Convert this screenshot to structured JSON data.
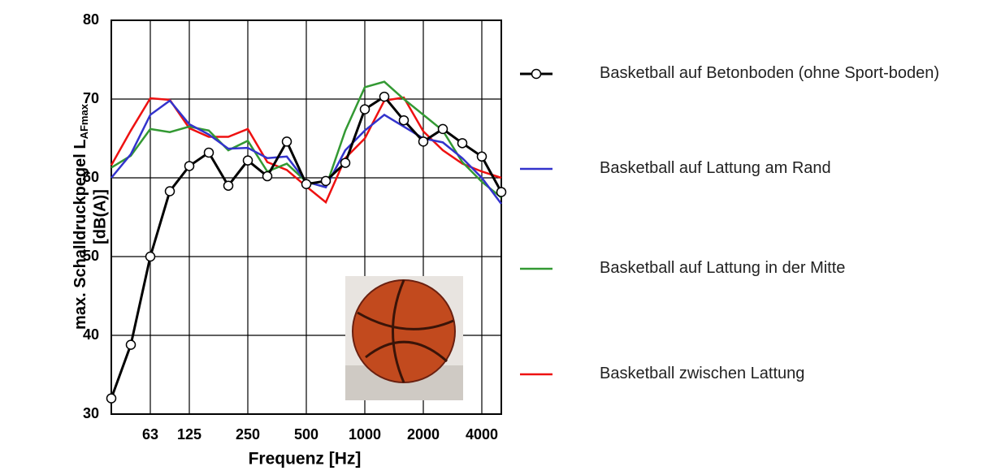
{
  "chart_data": {
    "type": "line",
    "y_label": {
      "main": "max. Schalldruckpegel L",
      "sub": "AFmax",
      "unit": "[dB(A)]"
    },
    "x_label": "Frequenz [Hz]",
    "categories": [
      null,
      null,
      "63",
      null,
      "125",
      null,
      null,
      "250",
      null,
      null,
      "500",
      null,
      null,
      "1000",
      null,
      null,
      "2000",
      null,
      null,
      "4000",
      null
    ],
    "ylim": [
      30,
      80
    ],
    "yticks": [
      30,
      40,
      50,
      60,
      70,
      80
    ],
    "grid": true,
    "series": [
      {
        "name": "Basketball auf Betonboden (ohne Sport-boden)",
        "color": "#000000",
        "marker": "circle",
        "values": [
          32,
          38.8,
          50,
          58.3,
          61.5,
          63.2,
          59,
          62.2,
          60.2,
          64.6,
          59.2,
          59.6,
          61.9,
          68.7,
          70.3,
          67.3,
          64.6,
          66.2,
          64.4,
          62.7,
          58.2
        ]
      },
      {
        "name": "Basketball auf Lattung am Rand",
        "color": "#3333cc",
        "values": [
          60,
          63,
          68,
          69.8,
          66.8,
          65.5,
          63.7,
          63.8,
          62.5,
          62.7,
          59.5,
          58.8,
          63.5,
          66,
          68,
          66.5,
          65,
          64.5,
          62.5,
          60,
          56.7
        ]
      },
      {
        "name": "Basketball auf Lattung in der Mitte",
        "color": "#339933",
        "values": [
          61.3,
          62.8,
          66.2,
          65.8,
          66.5,
          66,
          63.5,
          64.7,
          60.8,
          61.8,
          59.5,
          58.8,
          66,
          71.5,
          72.2,
          70,
          68,
          66,
          62,
          59.5,
          57.5
        ]
      },
      {
        "name": "Basketball zwischen Lattung",
        "color": "#ee1111",
        "values": [
          61.6,
          66,
          70.1,
          69.9,
          66.3,
          65.2,
          65.2,
          66.2,
          62,
          61,
          58.9,
          56.9,
          62.5,
          65,
          69.8,
          70.2,
          65.9,
          63.5,
          61.8,
          60.8,
          60
        ]
      }
    ]
  }
}
